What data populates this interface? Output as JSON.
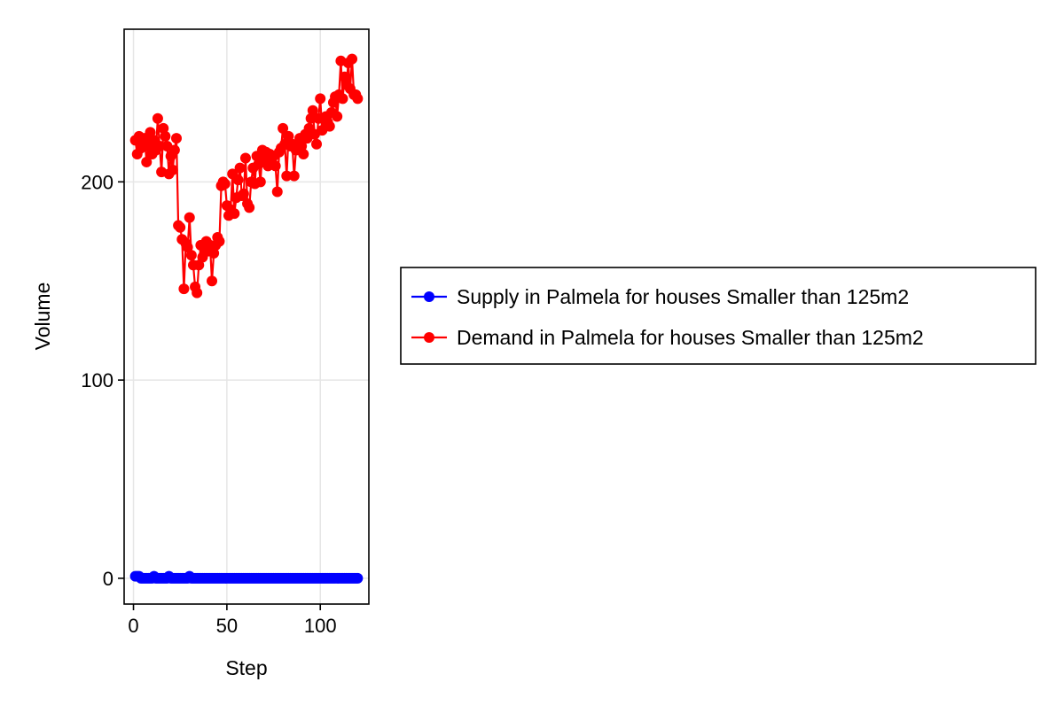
{
  "chart_data": {
    "type": "line",
    "title": "",
    "xlabel": "Step",
    "ylabel": "Volume",
    "xlim": [
      -5,
      126
    ],
    "ylim": [
      -13,
      277
    ],
    "x_ticks": [
      0,
      50,
      100
    ],
    "x_tick_labels": [
      "0",
      "50",
      "100"
    ],
    "y_ticks": [
      0,
      100,
      200
    ],
    "y_tick_labels": [
      "0",
      "100",
      "200"
    ],
    "grid": true,
    "legend_position": "right",
    "markers": true,
    "series": [
      {
        "name": "Supply in Palmela for houses Smaller than 125m2",
        "color": "#0000ff",
        "x": [
          1,
          2,
          3,
          4,
          5,
          6,
          7,
          8,
          9,
          10,
          11,
          12,
          13,
          14,
          15,
          16,
          17,
          18,
          19,
          20,
          21,
          22,
          23,
          24,
          25,
          26,
          27,
          28,
          29,
          30,
          31,
          32,
          33,
          34,
          35,
          36,
          37,
          38,
          39,
          40,
          41,
          42,
          43,
          44,
          45,
          46,
          47,
          48,
          49,
          50,
          51,
          52,
          53,
          54,
          55,
          56,
          57,
          58,
          59,
          60,
          61,
          62,
          63,
          64,
          65,
          66,
          67,
          68,
          69,
          70,
          71,
          72,
          73,
          74,
          75,
          76,
          77,
          78,
          79,
          80,
          81,
          82,
          83,
          84,
          85,
          86,
          87,
          88,
          89,
          90,
          91,
          92,
          93,
          94,
          95,
          96,
          97,
          98,
          99,
          100,
          101,
          102,
          103,
          104,
          105,
          106,
          107,
          108,
          109,
          110,
          111,
          112,
          113,
          114,
          115,
          116,
          117,
          118,
          119,
          120
        ],
        "y": [
          1,
          1,
          1,
          0,
          0,
          0,
          0,
          0,
          0,
          0,
          1,
          0,
          0,
          0,
          0,
          0,
          0,
          0,
          1,
          0,
          0,
          0,
          0,
          0,
          0,
          0,
          0,
          0,
          0,
          1,
          0,
          0,
          0,
          0,
          0,
          0,
          0,
          0,
          0,
          0,
          0,
          0,
          0,
          0,
          0,
          0,
          0,
          0,
          0,
          0,
          0,
          0,
          0,
          0,
          0,
          0,
          0,
          0,
          0,
          0,
          0,
          0,
          0,
          0,
          0,
          0,
          0,
          0,
          0,
          0,
          0,
          0,
          0,
          0,
          0,
          0,
          0,
          0,
          0,
          0,
          0,
          0,
          0,
          0,
          0,
          0,
          0,
          0,
          0,
          0,
          0,
          0,
          0,
          0,
          0,
          0,
          0,
          0,
          0,
          0,
          0,
          0,
          0,
          0,
          0,
          0,
          0,
          0,
          0,
          0,
          0,
          0,
          0,
          0,
          0,
          0,
          0,
          0,
          0,
          0
        ]
      },
      {
        "name": "Demand in Palmela for houses Smaller than 125m2",
        "color": "#ff0000",
        "x": [
          1,
          2,
          3,
          4,
          5,
          6,
          7,
          8,
          9,
          10,
          11,
          12,
          13,
          14,
          15,
          16,
          17,
          18,
          19,
          20,
          21,
          22,
          23,
          24,
          25,
          26,
          27,
          28,
          29,
          30,
          31,
          32,
          33,
          34,
          35,
          36,
          37,
          38,
          39,
          40,
          41,
          42,
          43,
          44,
          45,
          46,
          47,
          48,
          49,
          50,
          51,
          52,
          53,
          54,
          55,
          56,
          57,
          58,
          59,
          60,
          61,
          62,
          63,
          64,
          65,
          66,
          67,
          68,
          69,
          70,
          71,
          72,
          73,
          74,
          75,
          76,
          77,
          78,
          79,
          80,
          81,
          82,
          83,
          84,
          85,
          86,
          87,
          88,
          89,
          90,
          91,
          92,
          93,
          94,
          95,
          96,
          97,
          98,
          99,
          100,
          101,
          102,
          103,
          104,
          105,
          106,
          107,
          108,
          109,
          110,
          111,
          112,
          113,
          114,
          115,
          116,
          117,
          118,
          119,
          120
        ],
        "y": [
          221,
          214,
          223,
          217,
          220,
          222,
          210,
          218,
          225,
          214,
          221,
          216,
          232,
          218,
          205,
          227,
          223,
          218,
          204,
          213,
          206,
          216,
          222,
          178,
          177,
          171,
          146,
          169,
          167,
          182,
          163,
          158,
          147,
          144,
          158,
          168,
          162,
          166,
          170,
          165,
          168,
          150,
          164,
          168,
          172,
          170,
          198,
          200,
          199,
          188,
          183,
          186,
          204,
          184,
          192,
          201,
          207,
          193,
          194,
          212,
          189,
          187,
          200,
          207,
          199,
          213,
          209,
          200,
          216,
          212,
          215,
          208,
          214,
          211,
          213,
          208,
          195,
          215,
          217,
          227,
          219,
          203,
          223,
          218,
          219,
          203,
          216,
          219,
          222,
          218,
          214,
          224,
          222,
          227,
          232,
          236,
          224,
          219,
          232,
          242,
          226,
          232,
          233,
          230,
          228,
          235,
          240,
          243,
          233,
          244,
          261,
          242,
          253,
          249,
          260,
          247,
          262,
          244,
          244,
          242
        ]
      }
    ]
  }
}
